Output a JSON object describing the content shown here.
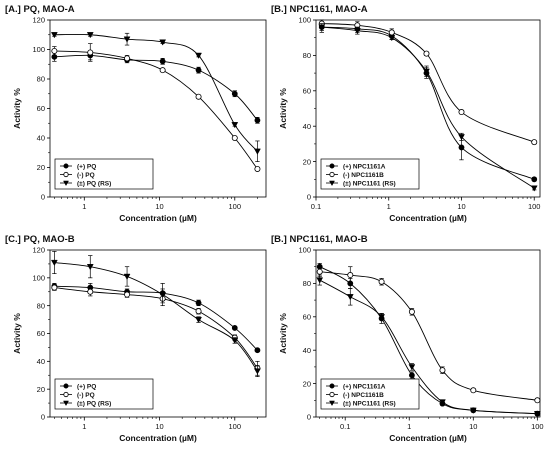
{
  "chart_data": [
    {
      "type": "line",
      "title": "[A.] PQ, MAO-A",
      "xlabel": "Concentration (µM)",
      "ylabel": "Activity %",
      "xscale": "log",
      "xlim": [
        0.35,
        260
      ],
      "ylim": [
        0,
        120
      ],
      "xticks": [
        1,
        10,
        100
      ],
      "xtick_labels": [
        "1",
        "10",
        "100"
      ],
      "yticks": [
        0,
        20,
        40,
        60,
        80,
        100,
        120
      ],
      "ytick_labels": [
        "0",
        "20",
        "40",
        "60",
        "80",
        "100",
        "120"
      ],
      "legend_position": "bottom-left",
      "series": [
        {
          "name": "(+) PQ",
          "marker": "filled-circle",
          "x": [
            0.4,
            1.2,
            3.7,
            11,
            33,
            100,
            200
          ],
          "y": [
            95,
            96,
            93,
            92,
            86,
            70,
            52
          ],
          "err": [
            3,
            3,
            2,
            2,
            2,
            2,
            2
          ]
        },
        {
          "name": "(-) PQ",
          "marker": "open-circle",
          "x": [
            0.4,
            1.2,
            3.7,
            11,
            33,
            100,
            200
          ],
          "y": [
            99,
            98,
            94,
            86,
            68,
            40,
            19
          ],
          "err": [
            3,
            6,
            2,
            1,
            1,
            1,
            1
          ]
        },
        {
          "name": "(±) PQ (RS)",
          "marker": "filled-triangle-down",
          "x": [
            0.4,
            1.2,
            3.7,
            11,
            33,
            100,
            200
          ],
          "y": [
            110,
            110,
            107,
            105,
            96,
            49,
            31
          ],
          "err": [
            1,
            1,
            4,
            1,
            1,
            1,
            7
          ]
        }
      ]
    },
    {
      "type": "line",
      "title": "[B.] NPC1161, MAO-A",
      "xlabel": "Concentration (µM)",
      "ylabel": "Activity %",
      "xscale": "log",
      "xlim": [
        0.1,
        120
      ],
      "ylim": [
        0,
        100
      ],
      "xticks": [
        0.1,
        1,
        10,
        100
      ],
      "xtick_labels": [
        "0.1",
        "1",
        "10",
        "100"
      ],
      "yticks": [
        0,
        20,
        40,
        60,
        80,
        100
      ],
      "ytick_labels": [
        "0",
        "20",
        "40",
        "60",
        "80",
        "100"
      ],
      "legend_position": "bottom-left",
      "series": [
        {
          "name": "(+) NPC1161A",
          "marker": "filled-circle",
          "x": [
            0.12,
            0.37,
            1.1,
            3.3,
            10,
            100
          ],
          "y": [
            96,
            95,
            91,
            70,
            28,
            10
          ],
          "err": [
            3,
            2,
            2,
            3,
            7,
            1
          ]
        },
        {
          "name": "(-) NPC1161B",
          "marker": "open-circle",
          "x": [
            0.12,
            0.37,
            1.1,
            3.3,
            10,
            100
          ],
          "y": [
            98,
            97,
            93,
            81,
            48,
            31
          ],
          "err": [
            2,
            2,
            2,
            1,
            1,
            1
          ]
        },
        {
          "name": "(±) NPC1161 (RS)",
          "marker": "filled-triangle-down",
          "x": [
            0.12,
            0.37,
            1.1,
            3.3,
            10,
            100
          ],
          "y": [
            96,
            94,
            90,
            71,
            34,
            5
          ],
          "err": [
            2,
            2,
            1,
            3,
            2,
            1
          ]
        }
      ]
    },
    {
      "type": "line",
      "title": "[C.] PQ, MAO-B",
      "xlabel": "Concentration (µM)",
      "ylabel": "Activity %",
      "xscale": "log",
      "xlim": [
        0.35,
        260
      ],
      "ylim": [
        0,
        120
      ],
      "xticks": [
        1,
        10,
        100
      ],
      "xtick_labels": [
        "1",
        "10",
        "100"
      ],
      "yticks": [
        0,
        20,
        40,
        60,
        80,
        100,
        120
      ],
      "ytick_labels": [
        "0",
        "20",
        "40",
        "60",
        "80",
        "100",
        "120"
      ],
      "legend_position": "bottom-left",
      "series": [
        {
          "name": "(+) PQ",
          "marker": "filled-circle",
          "x": [
            0.4,
            1.2,
            3.7,
            11,
            33,
            100,
            200
          ],
          "y": [
            94,
            93,
            90,
            89,
            82,
            64,
            48
          ],
          "err": [
            2,
            3,
            2,
            3,
            2,
            1,
            1
          ]
        },
        {
          "name": "(-) PQ",
          "marker": "open-circle",
          "x": [
            0.4,
            1.2,
            3.7,
            11,
            33,
            100,
            200
          ],
          "y": [
            93,
            90,
            88,
            85,
            76,
            57,
            35
          ],
          "err": [
            2,
            3,
            2,
            3,
            2,
            2,
            5
          ]
        },
        {
          "name": "(±) PQ (RS)",
          "marker": "filled-triangle-down",
          "x": [
            0.4,
            1.2,
            3.7,
            11,
            33,
            100,
            200
          ],
          "y": [
            111,
            108,
            101,
            88,
            70,
            55,
            33
          ],
          "err": [
            8,
            8,
            7,
            8,
            2,
            2,
            4
          ]
        }
      ]
    },
    {
      "type": "line",
      "title": "[B.] NPC1161, MAO-B",
      "xlabel": "Concentration (µM)",
      "ylabel": "Activity %",
      "xscale": "log",
      "xlim": [
        0.035,
        110
      ],
      "ylim": [
        0,
        100
      ],
      "xticks": [
        0.1,
        1,
        10,
        100
      ],
      "xtick_labels": [
        "0.1",
        "1",
        "10",
        "100"
      ],
      "yticks": [
        0,
        20,
        40,
        60,
        80,
        100
      ],
      "ytick_labels": [
        "0",
        "20",
        "40",
        "60",
        "80",
        "100"
      ],
      "legend_position": "bottom-left",
      "series": [
        {
          "name": "(+) NPC1161A",
          "marker": "filled-circle",
          "x": [
            0.04,
            0.12,
            0.37,
            1.1,
            3.3,
            10,
            100
          ],
          "y": [
            90,
            80,
            59,
            25,
            8,
            4,
            2
          ],
          "err": [
            2,
            3,
            3,
            2,
            1,
            1,
            1
          ]
        },
        {
          "name": "(-) NPC1161B",
          "marker": "open-circle",
          "x": [
            0.04,
            0.12,
            0.37,
            1.1,
            3.3,
            10,
            100
          ],
          "y": [
            87,
            85,
            81,
            63,
            28,
            16,
            10
          ],
          "err": [
            3,
            5,
            2,
            2,
            2,
            1,
            1
          ]
        },
        {
          "name": "(±) NPC1161 (RS)",
          "marker": "filled-triangle-down",
          "x": [
            0.04,
            0.12,
            0.37,
            1.1,
            3.3,
            10,
            100
          ],
          "y": [
            82,
            72,
            60,
            30,
            9,
            4,
            2
          ],
          "err": [
            3,
            5,
            2,
            2,
            1,
            1,
            1
          ]
        }
      ]
    }
  ]
}
